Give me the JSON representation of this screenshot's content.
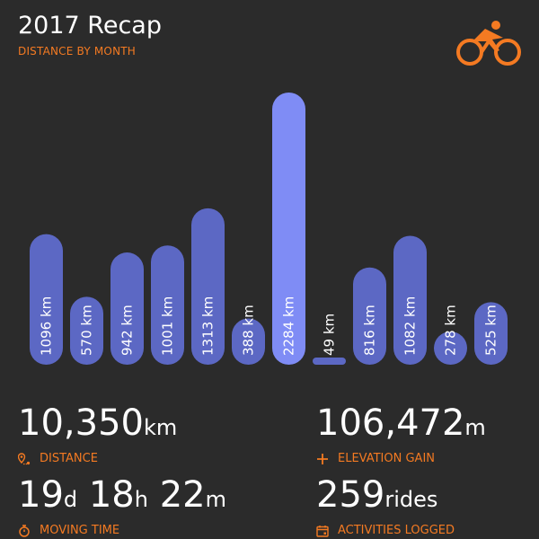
{
  "header": {
    "title": "2017 Recap",
    "subtitle": "DISTANCE BY MONTH"
  },
  "colors": {
    "background": "#2b2b2b",
    "accent": "#f47a22",
    "bar": "#5c68c4",
    "bar_highlight": "#7f8cf5"
  },
  "chart_data": {
    "type": "bar",
    "title": "DISTANCE BY MONTH",
    "values": [
      1096,
      570,
      942,
      1001,
      1313,
      388,
      2284,
      49,
      816,
      1082,
      278,
      525
    ],
    "labels": [
      "1096 km",
      "570 km",
      "942 km",
      "1001 km",
      "1313 km",
      "388 km",
      "2284 km",
      "49 km",
      "816 km",
      "1082 km",
      "278 km",
      "525 km"
    ],
    "highlight_index": 6,
    "unit": "km"
  },
  "stats": {
    "distance": {
      "value": "10,350",
      "unit": "km",
      "label": "DISTANCE",
      "icon": "map-pin-icon"
    },
    "elevation": {
      "value": "106,472",
      "unit": "m",
      "label": "ELEVATION GAIN",
      "icon": "plus-icon"
    },
    "time": {
      "days": "19",
      "days_unit": "d",
      "hours": "18",
      "hours_unit": "h",
      "minutes": "22",
      "minutes_unit": "m",
      "label": "MOVING TIME",
      "icon": "stopwatch-icon"
    },
    "activities": {
      "value": "259",
      "unit": "rides",
      "label": "ACTIVITIES LOGGED",
      "icon": "calendar-icon"
    }
  }
}
